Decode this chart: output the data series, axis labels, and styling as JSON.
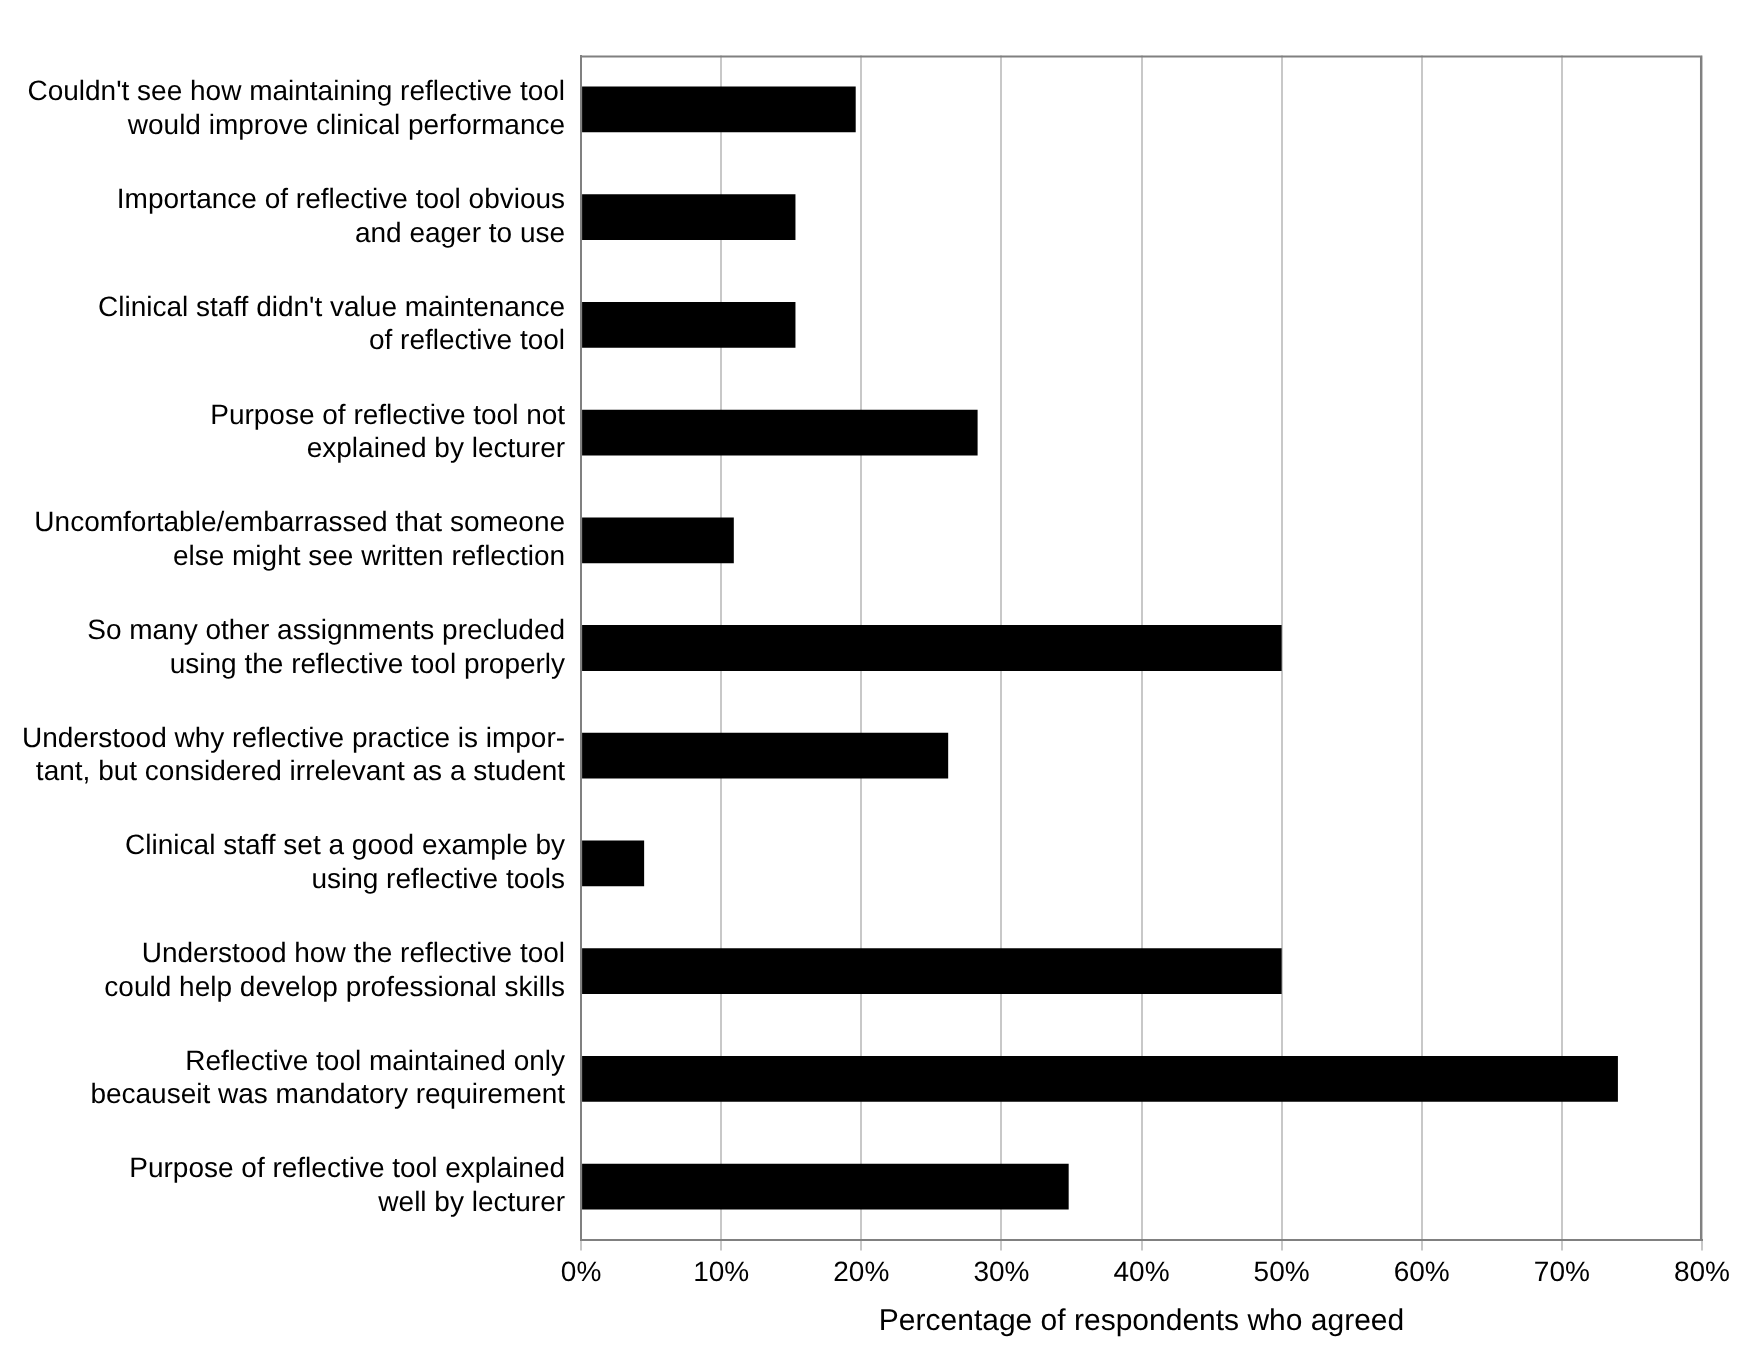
{
  "chart_data": {
    "type": "bar",
    "orientation": "horizontal",
    "xlabel": "Percentage of respondents who agreed",
    "categories": [
      "Couldn't see how maintaining reflective tool\nwould improve clinical performance",
      "Importance of reflective tool obvious\nand eager to use",
      "Clinical staff didn't value maintenance\nof reflective tool",
      "Purpose of reflective tool not\nexplained by lecturer",
      "Uncomfortable/embarrassed that someone\nelse might see written reflection",
      "So many other assignments precluded\nusing the reflective tool properly",
      "Understood why reflective practice is impor-\ntant, but considered irrelevant as a student",
      "Clinical staff set a good example by\nusing reflective tools",
      "Understood how the reflective tool\ncould help develop professional skills",
      "Reflective tool maintained only\nbecauseit was mandatory requirement",
      "Purpose of reflective tool explained\nwell by lecturer"
    ],
    "values": [
      19.6,
      15.3,
      15.3,
      28.3,
      10.9,
      50,
      26.2,
      4.5,
      50,
      74,
      34.8
    ],
    "color": "#000000",
    "xlim": [
      0,
      80
    ],
    "xticks": [
      {
        "value": 0,
        "label": "0%"
      },
      {
        "value": 10,
        "label": "10%"
      },
      {
        "value": 20,
        "label": "20%"
      },
      {
        "value": 30,
        "label": "30%"
      },
      {
        "value": 40,
        "label": "40%"
      },
      {
        "value": 50,
        "label": "50%"
      },
      {
        "value": 60,
        "label": "60%"
      },
      {
        "value": 70,
        "label": "70%"
      },
      {
        "value": 80,
        "label": "80%"
      }
    ],
    "grid": "x",
    "legend": false
  }
}
